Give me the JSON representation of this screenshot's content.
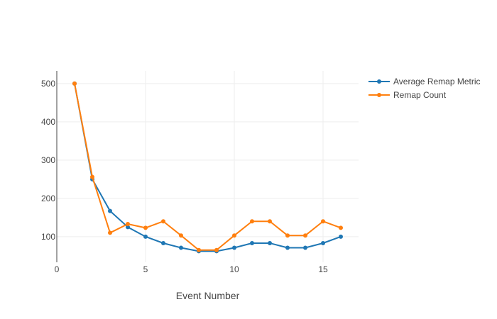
{
  "chart_data": {
    "type": "line",
    "title": "",
    "xlabel": "Event Number",
    "ylabel": "",
    "xlim": [
      0,
      17
    ],
    "ylim": [
      33,
      533
    ],
    "grid": true,
    "legend_position": "top-right",
    "x_ticks": [
      0,
      5,
      10,
      15
    ],
    "y_ticks": [
      100,
      200,
      300,
      400,
      500
    ],
    "series": [
      {
        "name": "Average Remap Metric",
        "color": "#1f77b4",
        "x": [
          1,
          2,
          3,
          4,
          5,
          6,
          7,
          8,
          9,
          10,
          11,
          12,
          13,
          14,
          15,
          16
        ],
        "y": [
          500,
          250,
          167,
          125,
          100,
          83,
          71,
          62,
          62,
          71,
          83,
          83,
          71,
          71,
          83,
          100
        ]
      },
      {
        "name": "Remap Count",
        "color": "#ff7f0e",
        "x": [
          1,
          2,
          3,
          4,
          5,
          6,
          7,
          8,
          9,
          10,
          11,
          12,
          13,
          14,
          15,
          16
        ],
        "y": [
          500,
          256,
          110,
          133,
          123,
          140,
          103,
          65,
          65,
          103,
          140,
          140,
          103,
          103,
          140,
          123
        ]
      }
    ]
  }
}
